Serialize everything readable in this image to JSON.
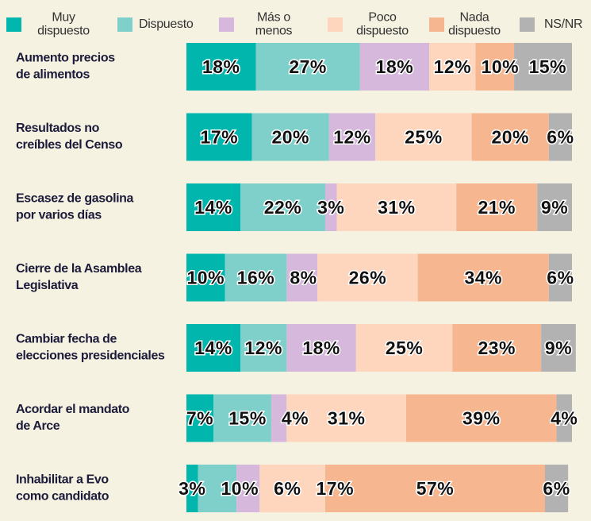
{
  "chart_data": {
    "type": "stacked-bar-horizontal",
    "categories": [
      "Aumento precios\nde alimentos",
      "Resultados no\ncreíbles del Censo",
      "Escasez de gasolina\npor varios días",
      "Cierre de la Asamblea\nLegislativa",
      "Cambiar fecha de\nelecciones presidenciales",
      "Acordar el mandato\nde Arce",
      "Inhabilitar a Evo\ncomo candidato"
    ],
    "xlim": [
      0,
      100
    ],
    "series": [
      {
        "name": "Muy\ndispuesto",
        "color": "#00b6ad",
        "values": [
          18,
          17,
          14,
          10,
          14,
          7,
          3
        ],
        "value_labels": [
          "18%",
          "17%",
          "14%",
          "10%",
          "14%",
          "7%",
          "3%"
        ]
      },
      {
        "name": "Dispuesto",
        "color": "#7fd0ca",
        "values": [
          27,
          20,
          22,
          16,
          12,
          15,
          10
        ],
        "value_labels": [
          "27%",
          "20%",
          "22%",
          "16%",
          "12%",
          "15%",
          "10%"
        ]
      },
      {
        "name": "Más o\nmenos",
        "color": "#d5b8dc",
        "values": [
          18,
          12,
          3,
          8,
          18,
          4,
          6
        ],
        "value_labels": [
          "18%",
          "12%",
          "3%",
          "8%",
          "18%",
          "4%",
          "6%"
        ]
      },
      {
        "name": "Poco\ndispuesto",
        "color": "#fdd6bd",
        "values": [
          12,
          25,
          31,
          26,
          25,
          31,
          17
        ],
        "value_labels": [
          "12%",
          "25%",
          "31%",
          "26%",
          "25%",
          "31%",
          "17%"
        ]
      },
      {
        "name": "Nada\ndispuesto",
        "color": "#f6b690",
        "values": [
          10,
          20,
          21,
          34,
          23,
          39,
          57
        ],
        "value_labels": [
          "10%",
          "20%",
          "21%",
          "34%",
          "23%",
          "39%",
          "57%"
        ]
      },
      {
        "name": "NS/NR",
        "color": "#b2b2b2",
        "values": [
          15,
          6,
          9,
          6,
          9,
          4,
          6
        ],
        "value_labels": [
          "15%",
          "6%",
          "9%",
          "6%",
          "9%",
          "4%",
          "6%"
        ]
      }
    ]
  }
}
